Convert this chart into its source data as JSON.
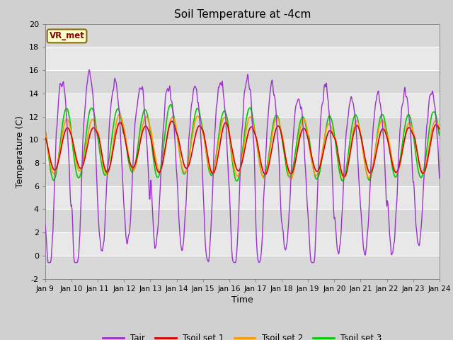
{
  "title": "Soil Temperature at -4cm",
  "xlabel": "Time",
  "ylabel": "Temperature (C)",
  "ylim": [
    -2,
    20
  ],
  "series": {
    "Tair": {
      "color": "#9933cc",
      "lw": 1.0
    },
    "Tsoil set 1": {
      "color": "#dd0000",
      "lw": 1.2
    },
    "Tsoil set 2": {
      "color": "#ff9900",
      "lw": 1.2
    },
    "Tsoil set 3": {
      "color": "#00cc00",
      "lw": 1.2
    }
  },
  "watermark": "VR_met",
  "xtick_labels": [
    "Jan 9",
    "Jan 10",
    "Jan 11",
    "Jan 12",
    "Jan 13",
    "Jan 14",
    "Jan 15",
    "Jan 16",
    "Jan 17",
    "Jan 18",
    "Jan 19",
    "Jan 20",
    "Jan 21",
    "Jan 22",
    "Jan 23",
    "Jan 24"
  ],
  "ytick_values": [
    -2,
    0,
    2,
    4,
    6,
    8,
    10,
    12,
    14,
    16,
    18,
    20
  ],
  "n_days": 15,
  "pts_per_day": 48,
  "fig_bg": "#d0d0d0",
  "plot_bg_light": "#e8e8e8",
  "plot_bg_dark": "#d8d8d8",
  "grid_color": "#ffffff"
}
